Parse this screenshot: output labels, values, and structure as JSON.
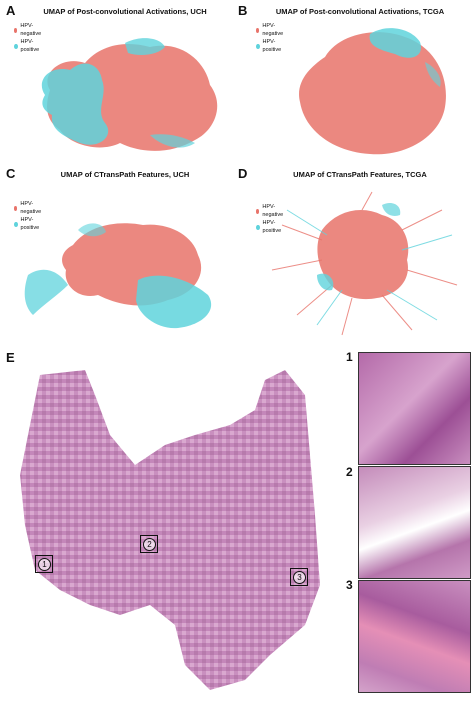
{
  "colors": {
    "negative": "#e8736a",
    "positive": "#5fd3dc",
    "tissue": "#c98fbf",
    "tissue_dark": "#9a5a93"
  },
  "panels": {
    "A": {
      "letter": "A",
      "title": "UMAP of Post-convolutional Activations, UCH",
      "legend": [
        "HPV-negative",
        "HPV-positive"
      ]
    },
    "B": {
      "letter": "B",
      "title": "UMAP of Post-convolutional Activations, TCGA",
      "legend": [
        "HPV-negative",
        "HPV-positive"
      ]
    },
    "C": {
      "letter": "C",
      "title": "UMAP of CTransPath Features, UCH",
      "legend": [
        "HPV-negative",
        "HPV-positive"
      ]
    },
    "D": {
      "letter": "D",
      "title": "UMAP of CTransPath Features, TCGA",
      "legend": [
        "HPV-negative",
        "HPV-positive"
      ]
    },
    "E": {
      "letter": "E",
      "markers": [
        "1",
        "2",
        "3"
      ],
      "thumb_labels": [
        "1",
        "2",
        "3"
      ]
    }
  }
}
